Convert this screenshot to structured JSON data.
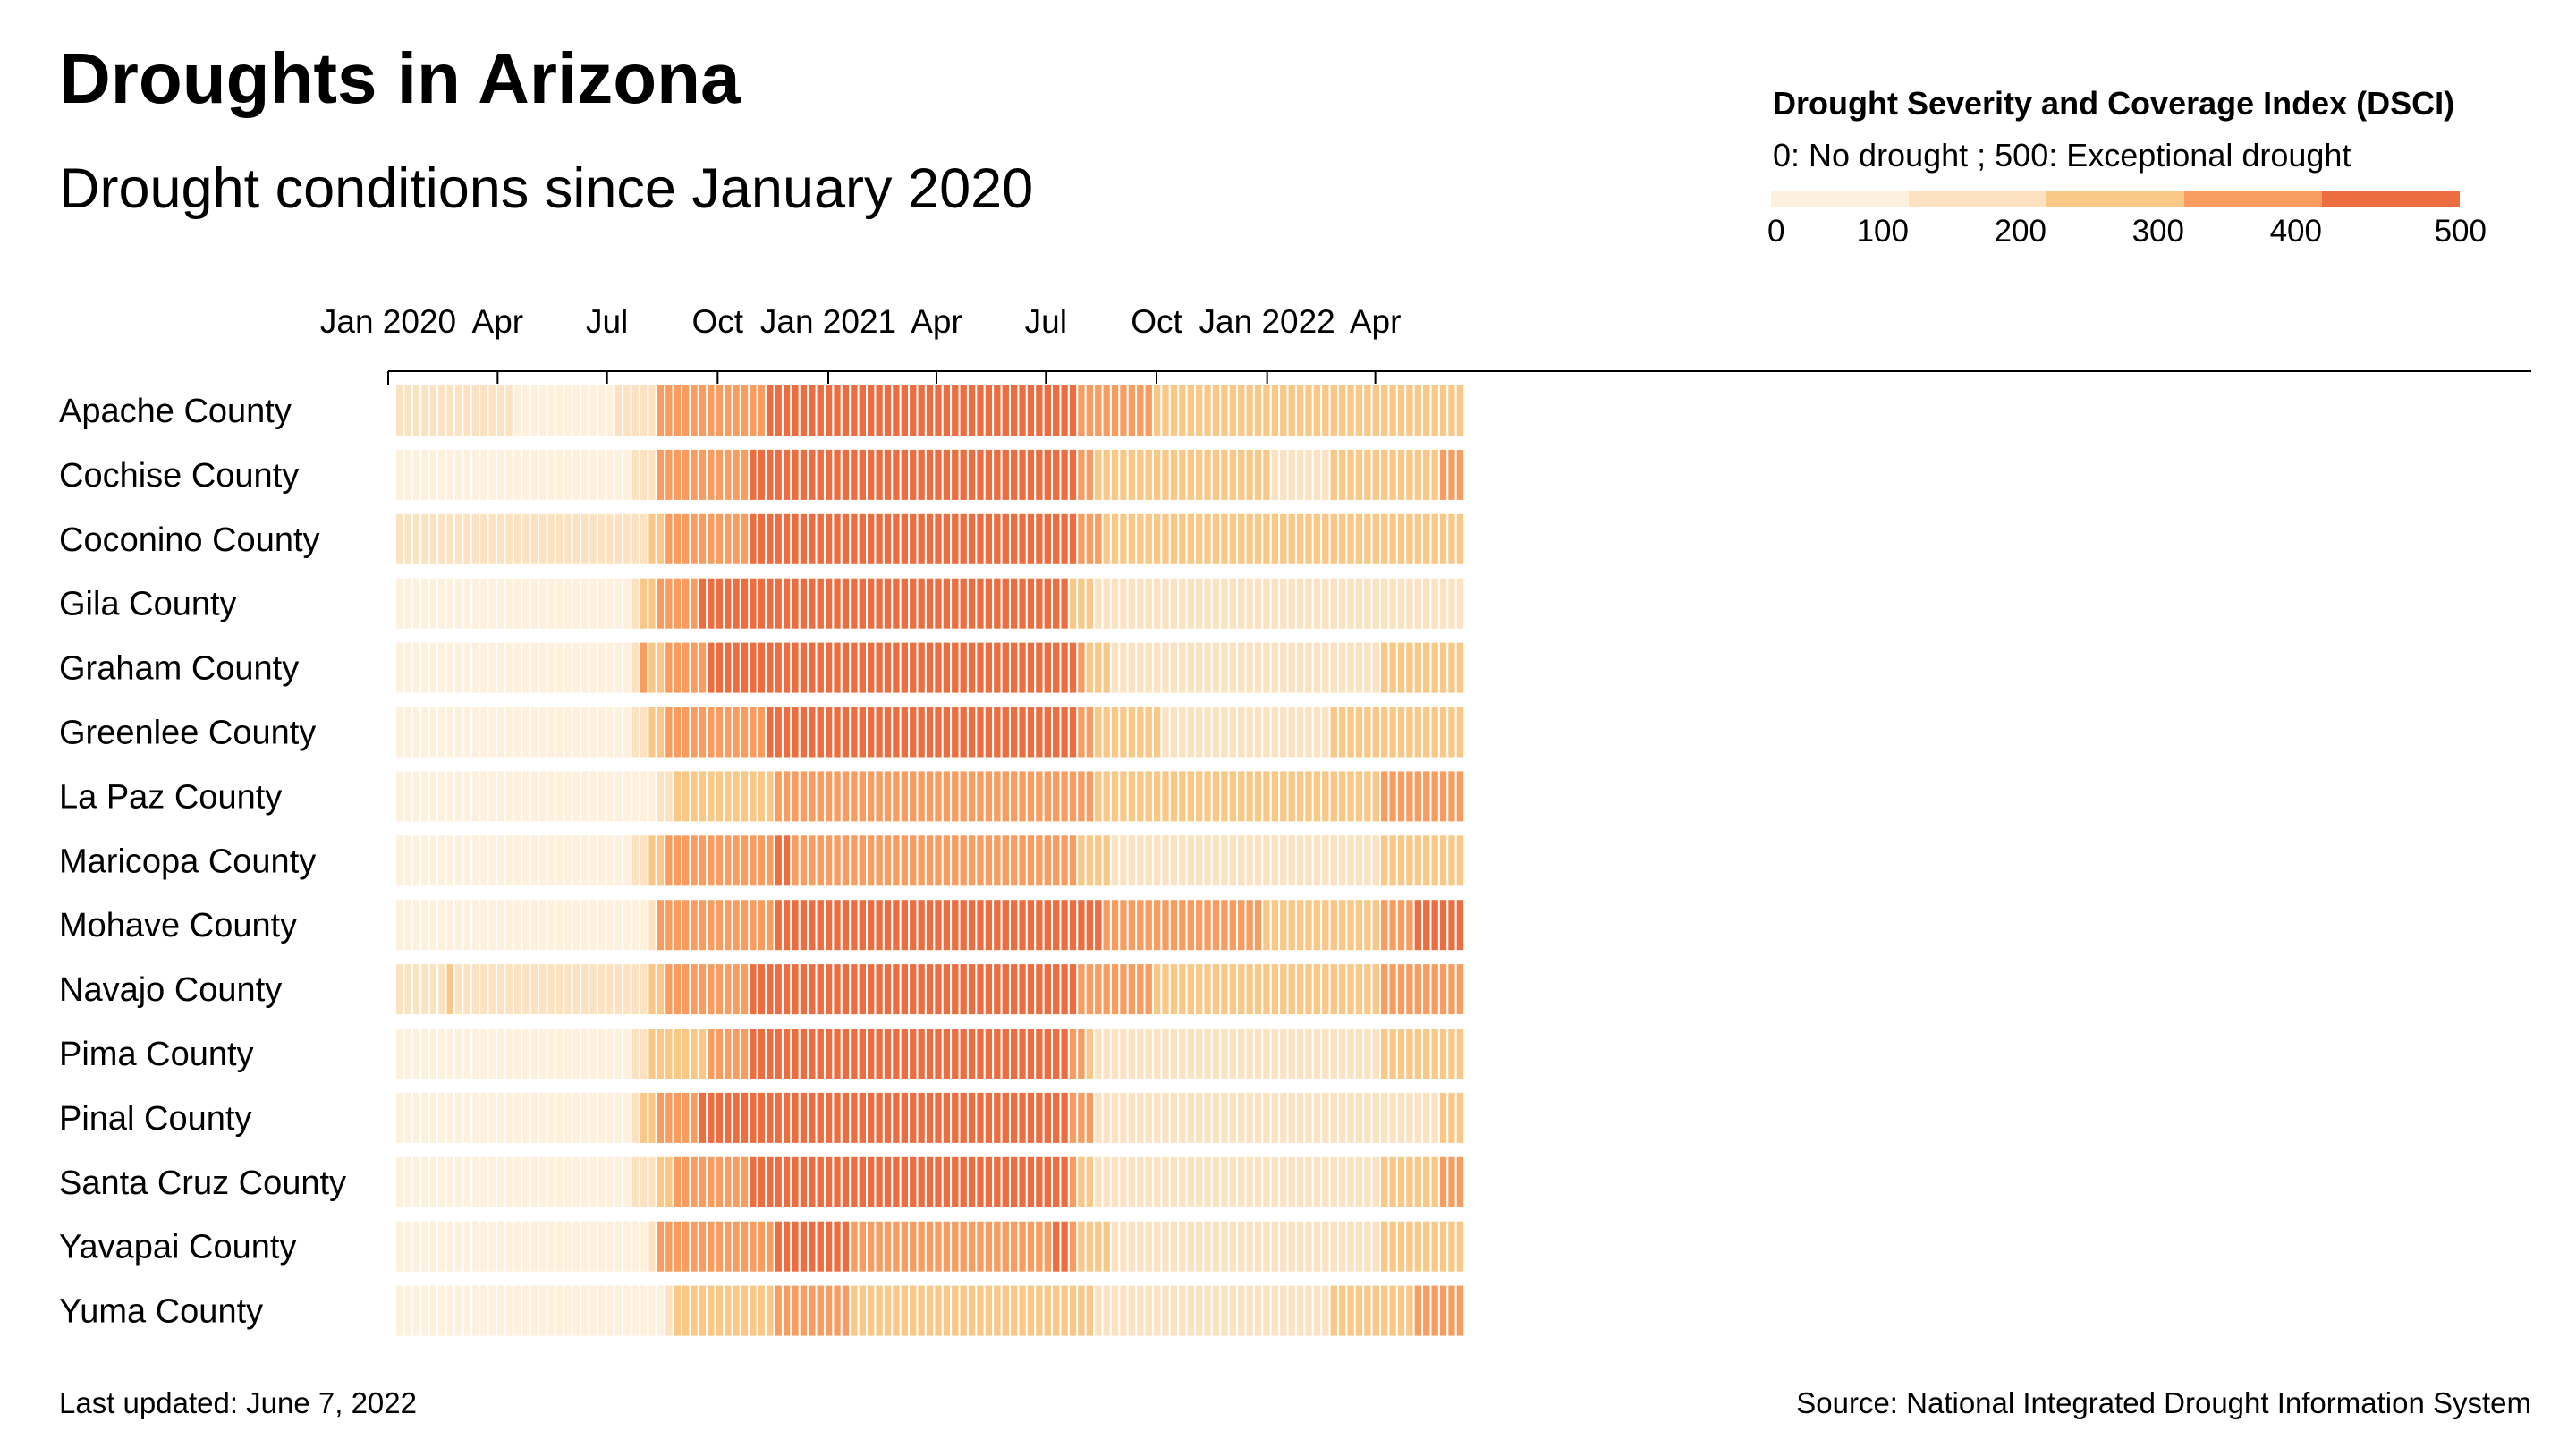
{
  "title": "Droughts in Arizona",
  "subtitle": "Drought conditions since January 2020",
  "legend": {
    "title": "Drought Severity and Coverage Index (DSCI)",
    "subtitle": "0: No drought ; 500: Exceptional drought",
    "ticks": [
      "0",
      "100",
      "200",
      "300",
      "400",
      "500"
    ],
    "colors": [
      "#fdf1de",
      "#fce2c0",
      "#f9c786",
      "#f89c60",
      "#ec6e40"
    ]
  },
  "footer": {
    "updated": "Last updated: June 7, 2022",
    "source": "Source: National Integrated Drought Information System"
  },
  "chart_data": {
    "type": "heatmap",
    "x_start": "2020-01-07",
    "x_end": "2022-06-07",
    "x_tick_labels": [
      "Jan 2020",
      "Apr",
      "Jul",
      "Oct",
      "Jan 2021",
      "Apr",
      "Jul",
      "Oct",
      "Jan 2022",
      "Apr"
    ],
    "x_tick_dates": [
      "2020-01-01",
      "2020-04-01",
      "2020-07-01",
      "2020-10-01",
      "2021-01-01",
      "2021-04-01",
      "2021-07-01",
      "2021-10-01",
      "2022-01-01",
      "2022-04-01"
    ],
    "value_unit": "DSCI",
    "value_range": [
      0,
      500
    ],
    "rows": [
      {
        "name": "Apache County",
        "segments": [
          [
            "2020-01-07",
            100
          ],
          [
            "2020-04-14",
            50
          ],
          [
            "2020-07-07",
            100
          ],
          [
            "2020-08-11",
            350
          ],
          [
            "2020-11-10",
            450
          ],
          [
            "2021-07-27",
            350
          ],
          [
            "2021-09-28",
            250
          ]
        ]
      },
      {
        "name": "Cochise County",
        "segments": [
          [
            "2020-01-07",
            50
          ],
          [
            "2020-07-21",
            100
          ],
          [
            "2020-08-11",
            350
          ],
          [
            "2020-10-27",
            450
          ],
          [
            "2021-07-27",
            350
          ],
          [
            "2021-08-10",
            250
          ],
          [
            "2022-01-04",
            150
          ],
          [
            "2022-02-22",
            250
          ],
          [
            "2022-05-24",
            350
          ]
        ]
      },
      {
        "name": "Coconino County",
        "segments": [
          [
            "2020-01-07",
            100
          ],
          [
            "2020-08-04",
            250
          ],
          [
            "2020-08-18",
            350
          ],
          [
            "2020-10-27",
            450
          ],
          [
            "2021-07-27",
            350
          ],
          [
            "2021-08-17",
            250
          ]
        ]
      },
      {
        "name": "Gila County",
        "segments": [
          [
            "2020-01-07",
            50
          ],
          [
            "2020-07-21",
            100
          ],
          [
            "2020-07-28",
            250
          ],
          [
            "2020-08-11",
            350
          ],
          [
            "2020-09-15",
            450
          ],
          [
            "2021-07-20",
            250
          ],
          [
            "2021-08-10",
            150
          ],
          [
            "2021-12-28",
            100
          ],
          [
            "2022-04-05",
            150
          ]
        ]
      },
      {
        "name": "Graham County",
        "segments": [
          [
            "2020-01-07",
            50
          ],
          [
            "2020-07-21",
            100
          ],
          [
            "2020-07-28",
            300
          ],
          [
            "2020-08-04",
            250
          ],
          [
            "2020-08-18",
            350
          ],
          [
            "2020-09-22",
            450
          ],
          [
            "2021-07-27",
            350
          ],
          [
            "2021-08-03",
            250
          ],
          [
            "2021-08-24",
            150
          ],
          [
            "2022-04-05",
            250
          ]
        ]
      },
      {
        "name": "Greenlee County",
        "segments": [
          [
            "2020-01-07",
            50
          ],
          [
            "2020-07-21",
            100
          ],
          [
            "2020-08-04",
            250
          ],
          [
            "2020-08-18",
            350
          ],
          [
            "2020-11-10",
            450
          ],
          [
            "2021-07-27",
            350
          ],
          [
            "2021-08-10",
            250
          ],
          [
            "2021-10-05",
            150
          ],
          [
            "2022-02-22",
            250
          ]
        ]
      },
      {
        "name": "La Paz County",
        "segments": [
          [
            "2020-01-07",
            50
          ],
          [
            "2020-08-11",
            100
          ],
          [
            "2020-08-25",
            250
          ],
          [
            "2020-11-17",
            350
          ],
          [
            "2021-08-10",
            250
          ],
          [
            "2022-04-05",
            350
          ]
        ]
      },
      {
        "name": "Maricopa County",
        "segments": [
          [
            "2020-01-07",
            50
          ],
          [
            "2020-07-21",
            100
          ],
          [
            "2020-08-04",
            250
          ],
          [
            "2020-08-18",
            350
          ],
          [
            "2020-11-17",
            450
          ],
          [
            "2020-12-01",
            350
          ],
          [
            "2021-07-27",
            250
          ],
          [
            "2021-08-24",
            150
          ],
          [
            "2022-04-05",
            250
          ]
        ]
      },
      {
        "name": "Mohave County",
        "segments": [
          [
            "2020-01-07",
            50
          ],
          [
            "2020-08-04",
            100
          ],
          [
            "2020-08-11",
            350
          ],
          [
            "2020-11-17",
            450
          ],
          [
            "2021-08-17",
            350
          ],
          [
            "2021-12-28",
            250
          ],
          [
            "2022-04-05",
            350
          ],
          [
            "2022-05-03",
            450
          ]
        ]
      },
      {
        "name": "Navajo County",
        "segments": [
          [
            "2020-01-07",
            100
          ],
          [
            "2020-02-18",
            250
          ],
          [
            "2020-02-25",
            100
          ],
          [
            "2020-08-04",
            250
          ],
          [
            "2020-08-18",
            350
          ],
          [
            "2020-10-27",
            450
          ],
          [
            "2021-07-27",
            350
          ],
          [
            "2021-09-28",
            250
          ],
          [
            "2022-04-05",
            350
          ]
        ]
      },
      {
        "name": "Pima County",
        "segments": [
          [
            "2020-01-07",
            50
          ],
          [
            "2020-07-21",
            100
          ],
          [
            "2020-08-04",
            250
          ],
          [
            "2020-09-22",
            350
          ],
          [
            "2020-10-27",
            450
          ],
          [
            "2021-07-20",
            350
          ],
          [
            "2021-08-03",
            250
          ],
          [
            "2021-08-10",
            150
          ],
          [
            "2022-04-05",
            250
          ]
        ]
      },
      {
        "name": "Pinal County",
        "segments": [
          [
            "2020-01-07",
            50
          ],
          [
            "2020-07-21",
            100
          ],
          [
            "2020-07-28",
            250
          ],
          [
            "2020-08-11",
            350
          ],
          [
            "2020-09-15",
            450
          ],
          [
            "2021-07-20",
            350
          ],
          [
            "2021-08-10",
            150
          ],
          [
            "2022-05-24",
            250
          ]
        ]
      },
      {
        "name": "Santa Cruz County",
        "segments": [
          [
            "2020-01-07",
            50
          ],
          [
            "2020-07-21",
            100
          ],
          [
            "2020-08-11",
            250
          ],
          [
            "2020-08-25",
            350
          ],
          [
            "2020-10-27",
            450
          ],
          [
            "2021-07-20",
            350
          ],
          [
            "2021-07-27",
            250
          ],
          [
            "2021-08-10",
            150
          ],
          [
            "2022-04-05",
            250
          ],
          [
            "2022-05-24",
            350
          ]
        ]
      },
      {
        "name": "Yavapai County",
        "segments": [
          [
            "2020-01-07",
            50
          ],
          [
            "2020-08-04",
            100
          ],
          [
            "2020-08-11",
            350
          ],
          [
            "2020-11-17",
            450
          ],
          [
            "2021-01-19",
            350
          ],
          [
            "2021-07-06",
            450
          ],
          [
            "2021-07-20",
            350
          ],
          [
            "2021-07-27",
            250
          ],
          [
            "2021-08-24",
            150
          ],
          [
            "2022-04-05",
            250
          ]
        ]
      },
      {
        "name": "Yuma County",
        "segments": [
          [
            "2020-01-07",
            50
          ],
          [
            "2020-08-18",
            100
          ],
          [
            "2020-08-25",
            250
          ],
          [
            "2020-11-17",
            350
          ],
          [
            "2021-01-19",
            250
          ],
          [
            "2021-08-10",
            150
          ],
          [
            "2022-02-22",
            250
          ],
          [
            "2022-05-03",
            350
          ]
        ]
      }
    ]
  }
}
